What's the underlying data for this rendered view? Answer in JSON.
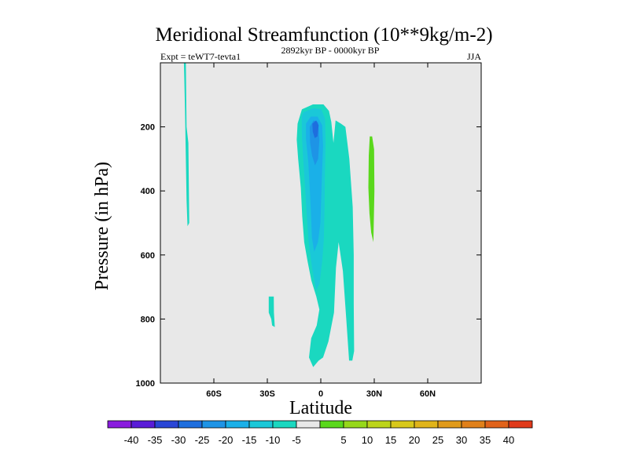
{
  "chart_data": {
    "type": "contour",
    "title": "Meridional Streamfunction (10**9kg/m-2)",
    "left_label": "Expt = teWT7-tevta1",
    "center_label": "2892kyr BP - 0000kyr BP",
    "right_label": "JJA",
    "xlabel": "Latitude",
    "ylabel": "Pressure (in hPa)",
    "xlim": [
      -90,
      90
    ],
    "ylim": [
      0,
      1000
    ],
    "y_inverted": true,
    "background_color": "#e8e8e8",
    "x_ticks": [
      {
        "value": -60,
        "label": "60S"
      },
      {
        "value": -30,
        "label": "30S"
      },
      {
        "value": 0,
        "label": "0"
      },
      {
        "value": 30,
        "label": "30N"
      },
      {
        "value": 60,
        "label": "60N"
      }
    ],
    "y_ticks": [
      {
        "value": 200,
        "label": "200"
      },
      {
        "value": 400,
        "label": "400"
      },
      {
        "value": 600,
        "label": "600"
      },
      {
        "value": 800,
        "label": "800"
      },
      {
        "value": 1000,
        "label": "1000"
      }
    ],
    "colorbar": {
      "colors": [
        "#8a1cde",
        "#5a1cd8",
        "#2a46d6",
        "#1e6ede",
        "#1e94e6",
        "#1ab0e8",
        "#1ac8d8",
        "#1ad8c0",
        "#e8e8e8",
        "#5ad81c",
        "#96d81a",
        "#bcd41a",
        "#d8c81a",
        "#e0b41a",
        "#e09a1a",
        "#e0801a",
        "#e0621a",
        "#e03a1a"
      ],
      "labels": [
        "-40",
        "-35",
        "-30",
        "-25",
        "-20",
        "-15",
        "-10",
        "-5",
        "5",
        "10",
        "15",
        "20",
        "25",
        "30",
        "35",
        "40"
      ]
    },
    "regions": [
      {
        "name": "band-75S",
        "level": -5,
        "color": "#1ad8c0",
        "points": [
          [
            -76.8,
            0
          ],
          [
            -75.7,
            0
          ],
          [
            -75.3,
            200
          ],
          [
            -74.3,
            250
          ],
          [
            -73.8,
            500
          ],
          [
            -74.8,
            510
          ],
          [
            -75.3,
            430
          ],
          [
            -76.2,
            150
          ],
          [
            -76.6,
            50
          ]
        ]
      },
      {
        "name": "blob-30S",
        "level": -5,
        "color": "#1ad8c0",
        "points": [
          [
            -29.2,
            730
          ],
          [
            -26.4,
            730
          ],
          [
            -26.3,
            780
          ],
          [
            -25.8,
            825
          ],
          [
            -27.3,
            820
          ],
          [
            -27.8,
            800
          ],
          [
            -29.2,
            780
          ]
        ]
      },
      {
        "name": "main-cell",
        "level": -5,
        "color": "#1ad8c0",
        "points": [
          [
            -13,
            190
          ],
          [
            -10.6,
            145
          ],
          [
            -4.4,
            130
          ],
          [
            1.5,
            130
          ],
          [
            4.6,
            150
          ],
          [
            5.9,
            185
          ],
          [
            7.1,
            250
          ],
          [
            8.3,
            180
          ],
          [
            11.3,
            190
          ],
          [
            13.8,
            200
          ],
          [
            16,
            300
          ],
          [
            17.9,
            450
          ],
          [
            18.5,
            600
          ],
          [
            18.5,
            750
          ],
          [
            18.7,
            900
          ],
          [
            17.7,
            930
          ],
          [
            15.9,
            930
          ],
          [
            14.3,
            800
          ],
          [
            12.4,
            650
          ],
          [
            10,
            560
          ],
          [
            8.5,
            640
          ],
          [
            7.4,
            780
          ],
          [
            4.3,
            870
          ],
          [
            1.3,
            920
          ],
          [
            -1.2,
            930
          ],
          [
            -4.3,
            950
          ],
          [
            -6.6,
            920
          ],
          [
            -5.4,
            860
          ],
          [
            -2.3,
            820
          ],
          [
            -0.8,
            770
          ],
          [
            -2.5,
            730
          ],
          [
            -5.3,
            680
          ],
          [
            -7.4,
            620
          ],
          [
            -9.3,
            560
          ],
          [
            -10.4,
            480
          ],
          [
            -11.2,
            390
          ],
          [
            -12.7,
            300
          ],
          [
            -13.5,
            240
          ]
        ]
      },
      {
        "name": "main-cell-inner",
        "level": -10,
        "color": "#1ac8d8",
        "points": [
          [
            -10.7,
            170
          ],
          [
            -9.9,
            155
          ],
          [
            -4.2,
            142
          ],
          [
            0.3,
            145
          ],
          [
            2.4,
            175
          ],
          [
            2.7,
            250
          ],
          [
            2.3,
            350
          ],
          [
            2.1,
            450
          ],
          [
            1.7,
            550
          ],
          [
            0.8,
            620
          ],
          [
            -0.7,
            690
          ],
          [
            -2.6,
            710
          ],
          [
            -4.9,
            640
          ],
          [
            -6.8,
            560
          ],
          [
            -7.8,
            480
          ],
          [
            -8.7,
            400
          ],
          [
            -9.9,
            300
          ],
          [
            -10.6,
            230
          ]
        ]
      },
      {
        "name": "main-cell-core",
        "level": -15,
        "color": "#1ab0e8",
        "points": [
          [
            -8.3,
            190
          ],
          [
            -5.6,
            168
          ],
          [
            -1.8,
            168
          ],
          [
            0.8,
            195
          ],
          [
            1.3,
            260
          ],
          [
            0.8,
            330
          ],
          [
            0.3,
            410
          ],
          [
            -0.2,
            500
          ],
          [
            -1.6,
            560
          ],
          [
            -3.7,
            590
          ],
          [
            -5,
            545
          ],
          [
            -5.5,
            470
          ],
          [
            -6.2,
            390
          ],
          [
            -7,
            310
          ],
          [
            -8.3,
            240
          ]
        ]
      },
      {
        "name": "main-cell-core2",
        "level": -20,
        "color": "#1e94e6",
        "points": [
          [
            -6.2,
            200
          ],
          [
            -4,
            180
          ],
          [
            -1.5,
            185
          ],
          [
            -0.8,
            240
          ],
          [
            -1.5,
            300
          ],
          [
            -3.2,
            320
          ],
          [
            -4.9,
            290
          ],
          [
            -6,
            250
          ]
        ]
      },
      {
        "name": "main-cell-max",
        "level": -25,
        "color": "#1e6ede",
        "points": [
          [
            -4.7,
            190
          ],
          [
            -2.6,
            180
          ],
          [
            -1.2,
            195
          ],
          [
            -1.8,
            230
          ],
          [
            -3.4,
            235
          ],
          [
            -4.5,
            215
          ]
        ]
      },
      {
        "name": "positive-25N",
        "level": 5,
        "color": "#5ad81c",
        "points": [
          [
            27.5,
            230
          ],
          [
            28.8,
            230
          ],
          [
            29.9,
            270
          ],
          [
            30.1,
            400
          ],
          [
            29.5,
            560
          ],
          [
            28.3,
            530
          ],
          [
            27.3,
            470
          ],
          [
            26.7,
            390
          ],
          [
            26.9,
            290
          ]
        ]
      }
    ]
  }
}
